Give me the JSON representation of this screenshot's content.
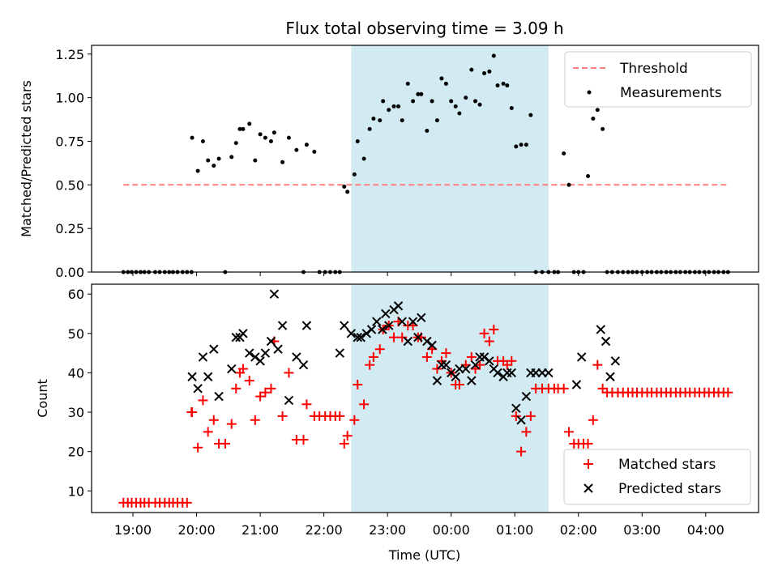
{
  "title": "Flux total observing time = 3.09 h",
  "colors": {
    "threshold": "#ff7f7f",
    "shade": "#add8e6",
    "measurement": "#000000",
    "matched": "#ff0000",
    "predicted": "#000000"
  },
  "chart_data": [
    {
      "type": "scatter",
      "title": "Flux total observing time = 3.09 h",
      "ylabel": "Matched/Predicted stars",
      "xlabel": "",
      "ylim": [
        0,
        1.3
      ],
      "yticks": [
        0,
        0.25,
        0.5,
        0.75,
        1.0,
        1.25
      ],
      "ytick_labels": [
        "0.00",
        "0.25",
        "0.50",
        "0.75",
        "1.00",
        "1.25"
      ],
      "x_unit": "hours since 18:00 UTC",
      "shaded_span": [
        4.43,
        7.53
      ],
      "legend_position": "upper right",
      "threshold": {
        "name": "Threshold",
        "value": 0.5,
        "x_range": [
          0.85,
          10.35
        ]
      },
      "series": [
        {
          "name": "Measurements",
          "x": [
            0.85,
            0.92,
            0.98,
            1.05,
            1.12,
            1.18,
            1.25,
            1.35,
            1.42,
            1.5,
            1.57,
            1.63,
            1.7,
            1.78,
            1.85,
            1.92,
            1.93,
            2.02,
            2.1,
            2.18,
            2.27,
            2.35,
            2.45,
            2.55,
            2.62,
            2.68,
            2.73,
            2.83,
            2.92,
            3.0,
            3.08,
            3.17,
            3.22,
            3.35,
            3.45,
            3.57,
            3.68,
            3.73,
            3.85,
            3.93,
            4.02,
            4.1,
            4.18,
            4.25,
            4.32,
            4.37,
            4.48,
            4.53,
            4.63,
            4.72,
            4.78,
            4.88,
            4.93,
            5.02,
            5.1,
            5.17,
            5.23,
            5.32,
            5.4,
            5.48,
            5.53,
            5.62,
            5.7,
            5.78,
            5.85,
            5.92,
            6.0,
            6.07,
            6.13,
            6.23,
            6.32,
            6.38,
            6.45,
            6.52,
            6.6,
            6.67,
            6.73,
            6.82,
            6.88,
            6.95,
            7.02,
            7.1,
            7.18,
            7.25,
            7.33,
            7.43,
            7.53,
            7.62,
            7.68,
            7.77,
            7.85,
            7.93,
            8.0,
            8.08,
            8.15,
            8.23,
            8.3,
            8.38,
            8.45,
            8.53,
            8.62,
            8.7,
            8.78,
            8.85,
            8.92,
            9.0,
            9.08,
            9.15,
            9.23,
            9.3,
            9.38,
            9.45,
            9.53,
            9.6,
            9.68,
            9.75,
            9.83,
            9.9,
            9.98,
            10.05,
            10.13,
            10.2,
            10.28,
            10.35
          ],
          "y": [
            0,
            0,
            0,
            0,
            0,
            0,
            0,
            0,
            0,
            0,
            0,
            0,
            0,
            0,
            0,
            0,
            0.77,
            0.58,
            0.75,
            0.64,
            0.61,
            0.65,
            0,
            0.66,
            0.74,
            0.82,
            0.82,
            0.85,
            0.64,
            0.79,
            0.77,
            0.75,
            0.8,
            0.63,
            0.77,
            0.7,
            0,
            0.73,
            0.69,
            0,
            0,
            0,
            0,
            0,
            0.49,
            0.46,
            0.56,
            0.75,
            0.65,
            0.82,
            0.88,
            0.87,
            0.98,
            0.93,
            0.95,
            0.95,
            0.87,
            1.08,
            0.98,
            1.02,
            1.02,
            0.81,
            0.98,
            0.87,
            1.11,
            1.08,
            0.98,
            0.95,
            0.91,
            1.0,
            1.16,
            0.98,
            0.96,
            1.14,
            1.15,
            1.24,
            1.07,
            1.08,
            1.07,
            0.94,
            0.72,
            0.73,
            0.73,
            0.9,
            0,
            0,
            0,
            0,
            0,
            0.68,
            0.5,
            0,
            0,
            0,
            0.55,
            0.88,
            0.93,
            0.82,
            0,
            0,
            0,
            0,
            0,
            0,
            0,
            0,
            0,
            0,
            0,
            0,
            0,
            0,
            0,
            0,
            0,
            0,
            0,
            0,
            0,
            0,
            0,
            0,
            0,
            0
          ]
        }
      ]
    },
    {
      "type": "scatter",
      "ylabel": "Count",
      "xlabel": "Time (UTC)",
      "ylim": [
        4.5,
        62.5
      ],
      "yticks": [
        10,
        20,
        30,
        40,
        50,
        60
      ],
      "xticks": [
        1,
        2,
        3,
        4,
        5,
        6,
        7,
        8,
        9,
        10
      ],
      "xtick_labels": [
        "19:00",
        "20:00",
        "21:00",
        "22:00",
        "23:00",
        "00:00",
        "01:00",
        "02:00",
        "03:00",
        "04:00"
      ],
      "x_unit": "hours since 18:00 UTC",
      "shaded_span": [
        4.43,
        7.53
      ],
      "legend_position": "lower right",
      "series": [
        {
          "name": "Matched stars",
          "marker": "+",
          "x": [
            0.85,
            0.92,
            0.98,
            1.05,
            1.12,
            1.18,
            1.25,
            1.35,
            1.42,
            1.5,
            1.57,
            1.63,
            1.7,
            1.78,
            1.85,
            1.92,
            1.93,
            2.02,
            2.1,
            2.18,
            2.27,
            2.35,
            2.45,
            2.55,
            2.62,
            2.68,
            2.73,
            2.83,
            2.92,
            3.0,
            3.08,
            3.17,
            3.22,
            3.35,
            3.45,
            3.57,
            3.68,
            3.73,
            3.85,
            3.93,
            4.02,
            4.1,
            4.18,
            4.25,
            4.32,
            4.37,
            4.48,
            4.53,
            4.63,
            4.72,
            4.78,
            4.88,
            4.93,
            5.02,
            5.1,
            5.17,
            5.23,
            5.32,
            5.4,
            5.48,
            5.53,
            5.62,
            5.7,
            5.78,
            5.85,
            5.92,
            6.0,
            6.07,
            6.13,
            6.23,
            6.32,
            6.38,
            6.45,
            6.52,
            6.6,
            6.67,
            6.73,
            6.82,
            6.88,
            6.95,
            7.02,
            7.1,
            7.18,
            7.25,
            7.33,
            7.43,
            7.53,
            7.62,
            7.68,
            7.77,
            7.85,
            7.93,
            8.0,
            8.08,
            8.15,
            8.23,
            8.3,
            8.38,
            8.45,
            8.53,
            8.62,
            8.7,
            8.78,
            8.85,
            8.92,
            9.0,
            9.08,
            9.15,
            9.23,
            9.3,
            9.38,
            9.45,
            9.53,
            9.6,
            9.68,
            9.75,
            9.83,
            9.9,
            9.98,
            10.05,
            10.13,
            10.2,
            10.28,
            10.35
          ],
          "y": [
            7,
            7,
            7,
            7,
            7,
            7,
            7,
            7,
            7,
            7,
            7,
            7,
            7,
            7,
            7,
            30,
            30,
            21,
            33,
            25,
            28,
            22,
            22,
            27,
            36,
            40,
            41,
            38,
            28,
            34,
            35,
            36,
            48,
            29,
            40,
            23,
            23,
            32,
            29,
            29,
            29,
            29,
            29,
            29,
            22,
            24,
            28,
            37,
            32,
            42,
            44,
            46,
            51,
            52,
            49,
            53,
            49,
            52,
            52,
            49,
            49,
            44,
            46,
            41,
            43,
            45,
            40,
            37,
            37,
            42,
            44,
            41,
            42,
            50,
            48,
            51,
            43,
            43,
            42,
            43,
            29,
            20,
            25,
            29,
            36,
            36,
            36,
            36,
            36,
            36,
            25,
            22,
            22,
            22,
            22,
            28,
            42,
            36,
            35,
            35,
            35,
            35,
            35,
            35,
            35,
            35,
            35,
            35,
            35,
            35,
            35,
            35,
            35,
            35,
            35,
            35,
            35,
            35,
            35,
            35,
            35,
            35,
            35,
            35
          ]
        },
        {
          "name": "Predicted stars",
          "marker": "x",
          "x": [
            1.93,
            2.02,
            2.1,
            2.18,
            2.27,
            2.35,
            2.55,
            2.62,
            2.68,
            2.73,
            2.83,
            2.92,
            3.0,
            3.08,
            3.17,
            3.22,
            3.28,
            3.35,
            3.45,
            3.57,
            3.68,
            3.73,
            4.25,
            4.32,
            4.43,
            4.53,
            4.58,
            4.67,
            4.75,
            4.83,
            4.92,
            4.97,
            5.02,
            5.1,
            5.17,
            5.23,
            5.32,
            5.4,
            5.48,
            5.53,
            5.62,
            5.7,
            5.78,
            5.85,
            5.92,
            6.0,
            6.07,
            6.13,
            6.23,
            6.32,
            6.38,
            6.45,
            6.52,
            6.6,
            6.67,
            6.73,
            6.82,
            6.88,
            6.95,
            7.02,
            7.1,
            7.18,
            7.25,
            7.33,
            7.43,
            7.53,
            7.97,
            8.05,
            8.35,
            8.43,
            8.5,
            8.58
          ],
          "y": [
            39,
            36,
            44,
            39,
            46,
            34,
            41,
            49,
            49,
            50,
            45,
            44,
            43,
            45,
            48,
            60,
            46,
            52,
            33,
            44,
            42,
            52,
            45,
            52,
            50,
            49,
            49,
            50,
            51,
            53,
            51,
            55,
            52,
            56,
            57,
            53,
            48,
            53,
            49,
            54,
            48,
            47,
            38,
            42,
            42,
            40,
            39,
            41,
            41,
            38,
            42,
            44,
            44,
            43,
            41,
            40,
            39,
            40,
            40,
            31,
            28,
            34,
            40,
            40,
            40,
            40,
            37,
            44,
            51,
            48,
            39,
            43
          ]
        }
      ]
    }
  ],
  "legend": {
    "top": [
      {
        "label": "Threshold"
      },
      {
        "label": "Measurements"
      }
    ],
    "bottom": [
      {
        "label": "Matched stars"
      },
      {
        "label": "Predicted stars"
      }
    ]
  }
}
